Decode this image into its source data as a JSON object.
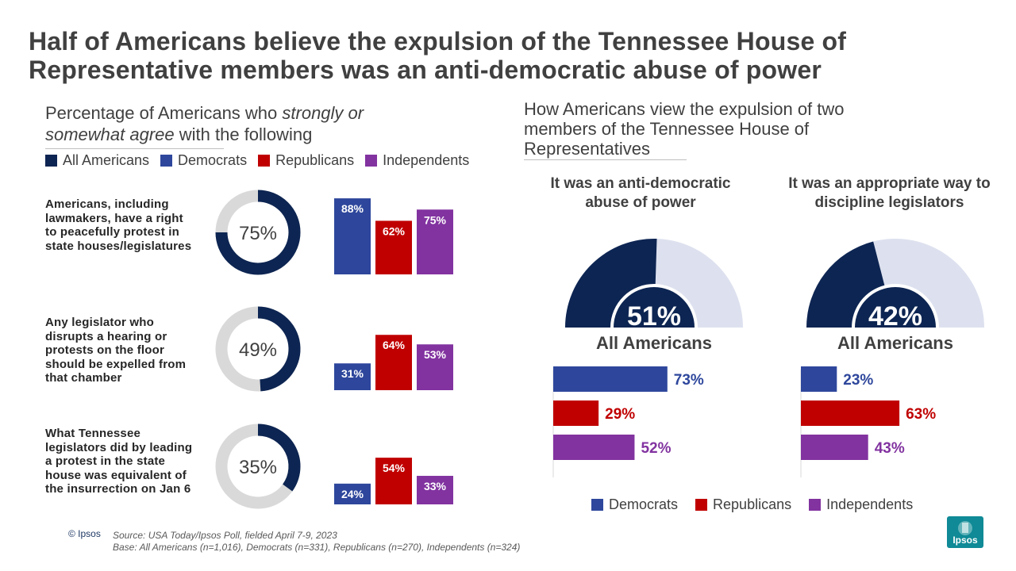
{
  "title": "Half of Americans believe the expulsion of the Tennessee House of Representative members was an anti-democratic abuse of power",
  "left": {
    "subtitle_pre": "Percentage of Americans who ",
    "subtitle_italic": "strongly or somewhat agree",
    "subtitle_post": " with the following",
    "legend": [
      {
        "label": "All Americans",
        "color": "#0d2552"
      },
      {
        "label": "Democrats",
        "color": "#2e479c"
      },
      {
        "label": "Republicans",
        "color": "#c00000"
      },
      {
        "label": "Independents",
        "color": "#8233a0"
      }
    ],
    "statements": [
      "Americans, including lawmakers, have a right to peacefully protest in state houses/legislatures",
      "Any legislator who disrupts a hearing or protests on the floor should be expelled from that chamber",
      "What Tennessee legislators did by leading a protest in the state house was equivalent of the insurrection on Jan 6"
    ]
  },
  "right": {
    "subtitle": "How Americans view the expulsion of two members of the Tennessee House of Representatives",
    "gauge_group_label": "All Americans",
    "legend": [
      {
        "label": "Democrats",
        "color": "#2e479c"
      },
      {
        "label": "Republicans",
        "color": "#c00000"
      },
      {
        "label": "Independents",
        "color": "#8233a0"
      }
    ]
  },
  "chart_data": [
    {
      "type": "bar",
      "categories": [
        "Right to peacefully protest",
        "Disrupting legislator should be expelled",
        "Equivalent of insurrection on Jan 6"
      ],
      "donut_all_americans": [
        75,
        49,
        35
      ],
      "series": [
        {
          "name": "Democrats",
          "values": [
            88,
            31,
            24
          ],
          "color": "#2e479c"
        },
        {
          "name": "Republicans",
          "values": [
            62,
            64,
            54
          ],
          "color": "#c00000"
        },
        {
          "name": "Independents",
          "values": [
            75,
            53,
            33
          ],
          "color": "#8233a0"
        }
      ],
      "unit": "%"
    },
    {
      "type": "bar",
      "orientation": "horizontal",
      "title": "It was an anti-democratic abuse of power",
      "all_americans": 51,
      "categories": [
        "Democrats",
        "Republicans",
        "Independents"
      ],
      "values": [
        73,
        29,
        52
      ],
      "colors": [
        "#2e479c",
        "#c00000",
        "#8233a0"
      ],
      "unit": "%"
    },
    {
      "type": "bar",
      "orientation": "horizontal",
      "title": "It was an appropriate way to discipline legislators",
      "all_americans": 42,
      "categories": [
        "Democrats",
        "Republicans",
        "Independents"
      ],
      "values": [
        23,
        63,
        43
      ],
      "colors": [
        "#2e479c",
        "#c00000",
        "#8233a0"
      ],
      "unit": "%"
    }
  ],
  "footer": {
    "copyright": "© Ipsos",
    "source": "Source: USA Today/Ipsos Poll, fielded April 7-9, 2023",
    "base": "Base: All Americans (n=1,016), Democrats (n=331), Republicans (n=270), Independents (n=324)",
    "logo_text": "Ipsos"
  }
}
